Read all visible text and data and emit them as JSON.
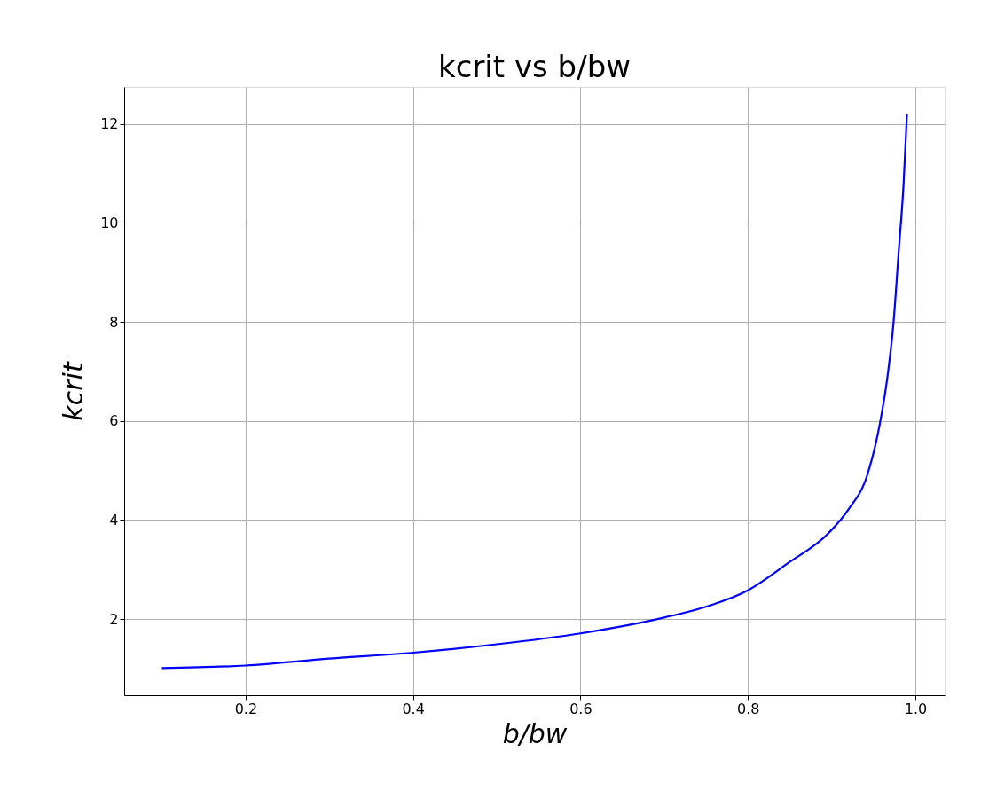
{
  "chart_data": {
    "type": "line",
    "title": "kcrit vs b/bw",
    "xlabel": "b/bw",
    "ylabel": "kcrit",
    "x": [
      0.1,
      0.2,
      0.3,
      0.4,
      0.5,
      0.6,
      0.7,
      0.754,
      0.8,
      0.848,
      0.896,
      0.92,
      0.943,
      0.957,
      0.967,
      0.974,
      0.98,
      0.986,
      0.99
    ],
    "series": [
      {
        "color": "#0000ff",
        "values": [
          1.01,
          1.06,
          1.2,
          1.32,
          1.49,
          1.71,
          2.03,
          2.27,
          2.58,
          3.13,
          3.73,
          4.21,
          4.93,
          5.89,
          6.93,
          8.0,
          9.4,
          10.8,
          12.2
        ]
      }
    ],
    "xlim": [
      0.055,
      1.035
    ],
    "ylim": [
      0.46,
      12.75
    ],
    "xticks": [
      0.2,
      0.4,
      0.6,
      0.8,
      {
        "value": 1,
        "label": "1.0"
      }
    ],
    "yticks": [
      2,
      4,
      6,
      8,
      10,
      12
    ],
    "grid": true,
    "marker": "none",
    "line_style": "solid"
  }
}
